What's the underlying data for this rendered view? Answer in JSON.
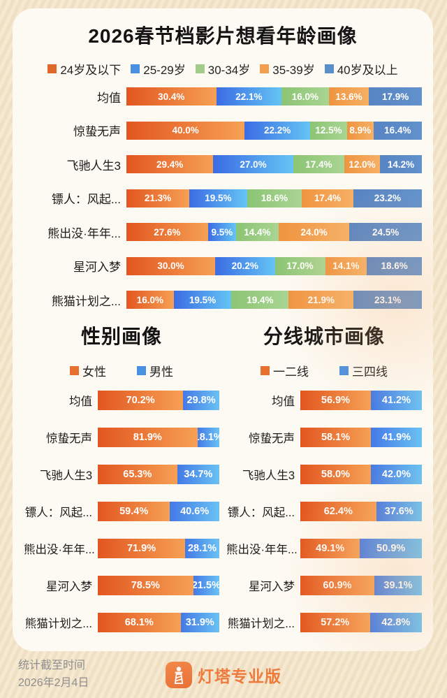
{
  "header": {
    "title": "2026春节档影片想看年龄画像"
  },
  "sections": {
    "gender": {
      "title": "性别画像"
    },
    "city": {
      "title": "分线城市画像"
    }
  },
  "footer": {
    "note_line1": "统计截至时间",
    "note_line2": "2026年2月4日",
    "brand": "灯塔专业版",
    "brand_color": "#ee7a3c",
    "note_color": "#8e8e8e"
  },
  "chart_data": [
    {
      "id": "age",
      "type": "bar",
      "stacked": true,
      "orientation": "horizontal",
      "title": "2026春节档影片想看年龄画像",
      "unit": "%",
      "legend_position": "top",
      "categories": [
        "均值",
        "惊蛰无声",
        "飞驰人生3",
        "镖人：风起...",
        "熊出没·年年...",
        "星河入梦",
        "熊猫计划之..."
      ],
      "series": [
        {
          "name": "24岁及以下",
          "legend_color": "#e0682b",
          "color_from": "#e2561f",
          "color_to": "#f6a055",
          "values": [
            30.4,
            40.0,
            29.4,
            21.3,
            27.6,
            30.0,
            16.0
          ]
        },
        {
          "name": "25-29岁",
          "legend_color": "#4a90e2",
          "color_from": "#3b6ce4",
          "color_to": "#64c4f4",
          "values": [
            22.1,
            22.2,
            27.0,
            19.5,
            9.5,
            20.2,
            19.5
          ]
        },
        {
          "name": "30-34岁",
          "legend_color": "#a3cc8a",
          "color_from": "#8cc473",
          "color_to": "#a9d593",
          "values": [
            16.0,
            12.5,
            17.4,
            18.6,
            14.4,
            17.0,
            19.4
          ]
        },
        {
          "name": "35-39岁",
          "legend_color": "#f2a050",
          "color_from": "#ef9440",
          "color_to": "#f6b065",
          "values": [
            13.6,
            8.9,
            12.0,
            17.4,
            24.0,
            14.1,
            21.9
          ]
        },
        {
          "name": "40岁及以上",
          "legend_color": "#5b8fc9",
          "color_from": "#5784c2",
          "color_to": "#6192cd",
          "values": [
            17.9,
            16.4,
            14.2,
            23.2,
            24.5,
            18.6,
            23.1
          ]
        }
      ]
    },
    {
      "id": "gender",
      "type": "bar",
      "stacked": true,
      "orientation": "horizontal",
      "title": "性别画像",
      "unit": "%",
      "legend_position": "top",
      "categories": [
        "均值",
        "惊蛰无声",
        "飞驰人生3",
        "镖人：风起...",
        "熊出没·年年...",
        "星河入梦",
        "熊猫计划之..."
      ],
      "series": [
        {
          "name": "女性",
          "legend_color": "#e8702e",
          "color_from": "#e2561f",
          "color_to": "#f6a055",
          "values": [
            70.2,
            81.9,
            65.3,
            59.4,
            71.9,
            78.5,
            68.1
          ]
        },
        {
          "name": "男性",
          "legend_color": "#4a90e2",
          "color_from": "#4479e6",
          "color_to": "#6ac2f4",
          "values": [
            29.8,
            18.1,
            34.7,
            40.6,
            28.1,
            21.5,
            31.9
          ]
        }
      ]
    },
    {
      "id": "city",
      "type": "bar",
      "stacked": true,
      "orientation": "horizontal",
      "title": "分线城市画像",
      "unit": "%",
      "legend_position": "top",
      "categories": [
        "均值",
        "惊蛰无声",
        "飞驰人生3",
        "镖人：风起...",
        "熊出没·年年...",
        "星河入梦",
        "熊猫计划之..."
      ],
      "series": [
        {
          "name": "一二线",
          "legend_color": "#e8702e",
          "color_from": "#e2561f",
          "color_to": "#f6a055",
          "values": [
            56.9,
            58.1,
            58.0,
            62.4,
            49.1,
            60.9,
            57.2
          ]
        },
        {
          "name": "三四线",
          "legend_color": "#4a90e2",
          "color_from": "#4479e6",
          "color_to": "#6ac2f4",
          "values": [
            41.2,
            41.9,
            42.0,
            37.6,
            50.9,
            39.1,
            42.8
          ]
        }
      ]
    }
  ]
}
